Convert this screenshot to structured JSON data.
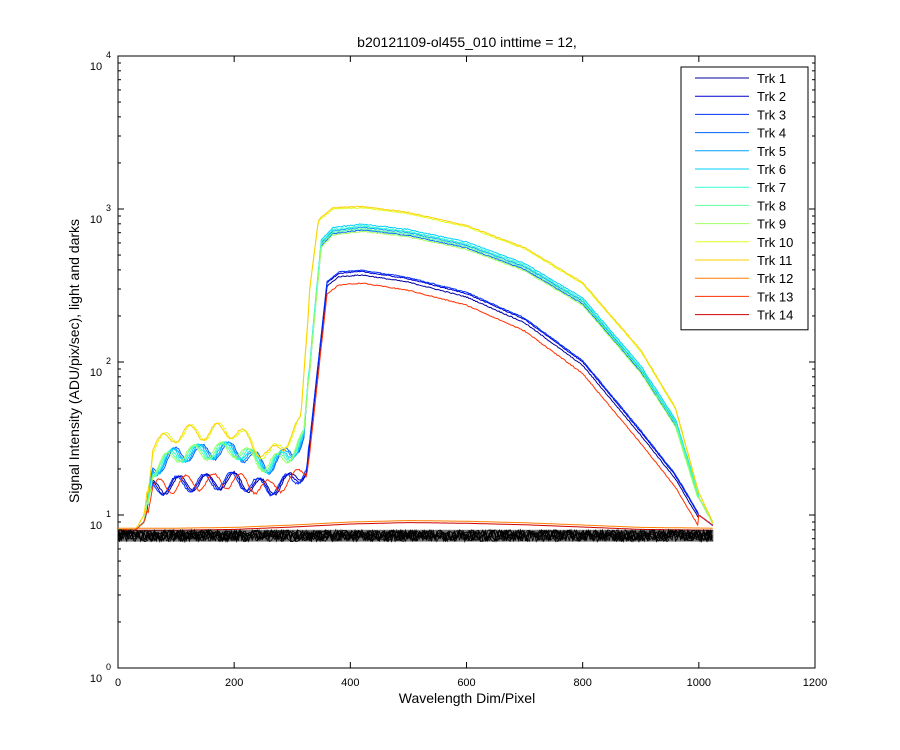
{
  "chart_data": {
    "type": "line",
    "title": "b20121109-ol455_010 inttime = 12,",
    "xlabel": "Wavelength Dim/Pixel",
    "ylabel": "Signal Intensity (ADU/pix/sec), light and darks",
    "xlim": [
      0,
      1200
    ],
    "ylim": [
      1,
      10000
    ],
    "yscale": "log",
    "x_ticks": [
      "0",
      "200",
      "400",
      "600",
      "800",
      "1000",
      "1200"
    ],
    "y_ticks": [
      {
        "base": "10",
        "exp": "0"
      },
      {
        "base": "10",
        "exp": "1"
      },
      {
        "base": "10",
        "exp": "2"
      },
      {
        "base": "10",
        "exp": "3"
      },
      {
        "base": "10",
        "exp": "4"
      }
    ],
    "grid": false,
    "legend_position": "top-right",
    "series": [
      {
        "name": "Trk 1",
        "color": "#00009f",
        "group": "low",
        "scale": 0.95
      },
      {
        "name": "Trk 2",
        "color": "#0000cf",
        "group": "low",
        "scale": 1.0
      },
      {
        "name": "Trk 3",
        "color": "#0030ff",
        "group": "low",
        "scale": 1.02
      },
      {
        "name": "Trk 4",
        "color": "#0060ff",
        "group": "mid",
        "scale": 0.96
      },
      {
        "name": "Trk 5",
        "color": "#00a0ff",
        "group": "mid",
        "scale": 1.0
      },
      {
        "name": "Trk 6",
        "color": "#00d0ff",
        "group": "mid",
        "scale": 1.05
      },
      {
        "name": "Trk 7",
        "color": "#30ffcf",
        "group": "mid",
        "scale": 1.02
      },
      {
        "name": "Trk 8",
        "color": "#60ff9f",
        "group": "mid",
        "scale": 0.98
      },
      {
        "name": "Trk 9",
        "color": "#a0ff60",
        "group": "mid",
        "scale": 0.94
      },
      {
        "name": "Trk 10",
        "color": "#e0ff20",
        "group": "high",
        "scale": 0.98
      },
      {
        "name": "Trk 11",
        "color": "#ffcf00",
        "group": "high",
        "scale": 1.0
      },
      {
        "name": "Trk 12",
        "color": "#ff7f00",
        "group": "flat",
        "scale": 1.0
      },
      {
        "name": "Trk 13",
        "color": "#ff3000",
        "group": "low",
        "scale": 0.84
      },
      {
        "name": "Trk 14",
        "color": "#cf0000",
        "group": "flat",
        "scale": 0.97
      }
    ],
    "profiles": {
      "low": {
        "x": [
          0,
          30,
          45,
          60,
          100,
          200,
          260,
          300,
          325,
          345,
          360,
          380,
          420,
          500,
          600,
          700,
          800,
          900,
          960,
          1000,
          1025
        ],
        "y": [
          8,
          8,
          9,
          15,
          16,
          17,
          15,
          17,
          20,
          100,
          330,
          380,
          390,
          350,
          280,
          190,
          100,
          35,
          18,
          10,
          8.5
        ]
      },
      "mid": {
        "x": [
          0,
          30,
          45,
          60,
          100,
          200,
          260,
          300,
          320,
          335,
          350,
          370,
          420,
          500,
          600,
          700,
          800,
          900,
          960,
          1000,
          1025
        ],
        "y": [
          8,
          8,
          9,
          20,
          25,
          27,
          21,
          26,
          32,
          150,
          600,
          720,
          760,
          700,
          580,
          420,
          250,
          90,
          40,
          13,
          8.7
        ]
      },
      "high": {
        "x": [
          0,
          30,
          45,
          60,
          100,
          200,
          260,
          300,
          315,
          330,
          345,
          370,
          420,
          500,
          600,
          700,
          800,
          900,
          960,
          1000,
          1025
        ],
        "y": [
          8,
          8,
          10,
          28,
          34,
          36,
          24,
          34,
          40,
          300,
          850,
          1020,
          1040,
          950,
          780,
          560,
          330,
          120,
          50,
          14,
          8.8
        ]
      },
      "flat": {
        "x": [
          0,
          100,
          200,
          300,
          400,
          500,
          600,
          700,
          800,
          900,
          1025
        ],
        "y": [
          8.2,
          8.2,
          8.3,
          8.6,
          9.0,
          9.2,
          9.1,
          8.9,
          8.6,
          8.3,
          8.2
        ]
      }
    },
    "dark_band": {
      "x_range": [
        0,
        1025
      ],
      "y_range": [
        6.7,
        8.0
      ],
      "color": "#000000"
    }
  }
}
